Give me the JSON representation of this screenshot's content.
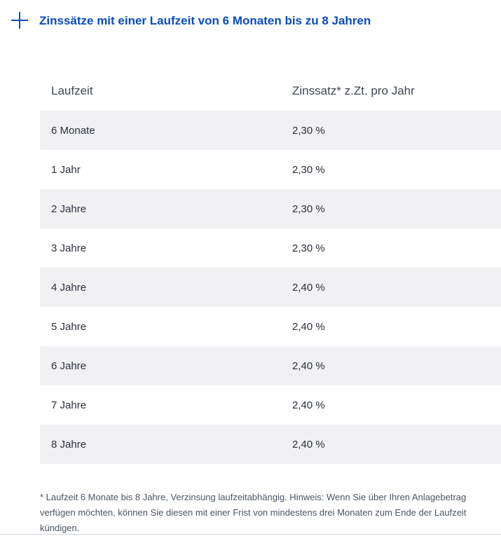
{
  "accordion": {
    "title": "Zinssätze mit einer Laufzeit von 6 Monaten bis zu 8 Jahren",
    "icon": "plus-icon"
  },
  "table": {
    "headers": {
      "term": "Laufzeit",
      "rate": "Zinssatz* z.Zt. pro Jahr"
    },
    "rows": [
      {
        "term": "6 Monate",
        "rate": "2,30 %"
      },
      {
        "term": "1 Jahr",
        "rate": "2,30 %"
      },
      {
        "term": "2 Jahre",
        "rate": "2,30 %"
      },
      {
        "term": "3 Jahre",
        "rate": "2,30 %"
      },
      {
        "term": "4 Jahre",
        "rate": "2,40 %"
      },
      {
        "term": "5 Jahre",
        "rate": "2,40 %"
      },
      {
        "term": "6 Jahre",
        "rate": "2,40 %"
      },
      {
        "term": "7 Jahre",
        "rate": "2,40 %"
      },
      {
        "term": "8 Jahre",
        "rate": "2,40 %"
      }
    ]
  },
  "footnote": "* Laufzeit 6 Monate bis 8 Jahre, Verzinsung laufzeitabhängig. Hinweis: Wenn Sie über Ihren Anlagebetrag verfügen möchten, können Sie diesen mit einer Frist von mindestens drei Monaten zum Ende der Laufzeit kündigen.",
  "colors": {
    "accent": "#0a4bbf",
    "row_stripe": "#f1f1f3"
  }
}
